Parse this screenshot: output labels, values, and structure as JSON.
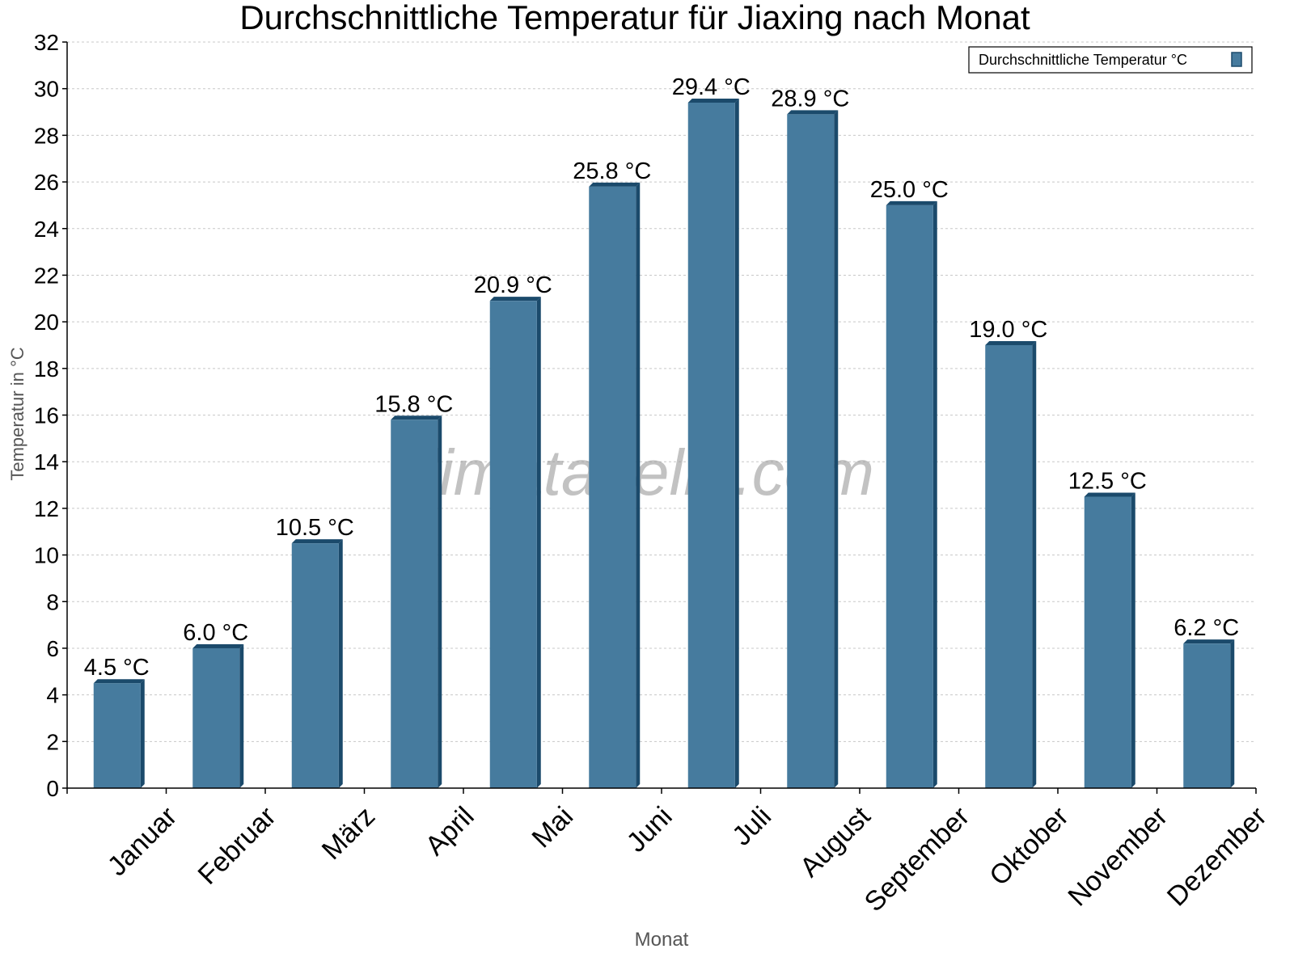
{
  "chart_data": {
    "type": "bar",
    "title": "Durchschnittliche Temperatur für Jiaxing nach Monat",
    "xlabel": "Monat",
    "ylabel": "Temperatur in °C",
    "ylim": [
      0,
      32
    ],
    "yticks": [
      0,
      2,
      4,
      6,
      8,
      10,
      12,
      14,
      16,
      18,
      20,
      22,
      24,
      26,
      28,
      30,
      32
    ],
    "grid": true,
    "legend": {
      "position": "top-right",
      "entries": [
        "Durchschnittliche Temperatur °C"
      ]
    },
    "categories": [
      "Januar",
      "Februar",
      "März",
      "April",
      "Mai",
      "Juni",
      "Juli",
      "August",
      "September",
      "Oktober",
      "November",
      "Dezember"
    ],
    "series": [
      {
        "name": "Durchschnittliche Temperatur °C",
        "values": [
          4.5,
          6.0,
          10.5,
          15.8,
          20.9,
          25.8,
          29.4,
          28.9,
          25.0,
          19.0,
          12.5,
          6.2
        ],
        "labels": [
          "4.5 °C",
          "6.0 °C",
          "10.5 °C",
          "15.8 °C",
          "20.9 °C",
          "25.8 °C",
          "29.4 °C",
          "28.9 °C",
          "25.0 °C",
          "19.0 °C",
          "12.5 °C",
          "6.2 °C"
        ]
      }
    ],
    "watermark": "klimatabelle.com",
    "colors": {
      "bar": "#467b9e",
      "bar_side": "#1b4a6b"
    }
  }
}
